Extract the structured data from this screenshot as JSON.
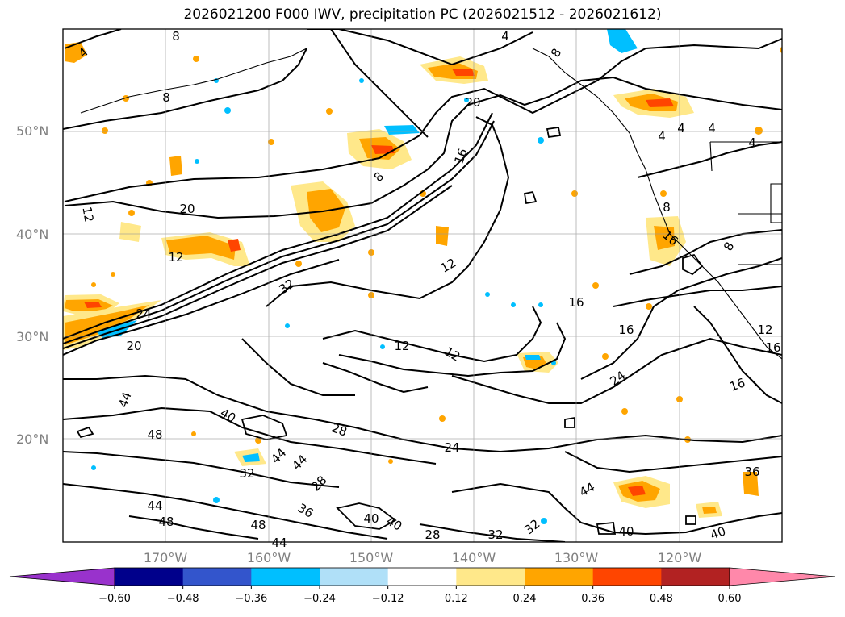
{
  "title": "2026021200 F000 IWV, precipitation PC (2026021512 - 2026021612)",
  "latitude_labels": [
    "50°N",
    "40°N",
    "30°N",
    "20°N"
  ],
  "longitude_labels": [
    "170°W",
    "160°W",
    "150°W",
    "140°W",
    "130°W",
    "120°W"
  ],
  "contour_labels": [
    "4",
    "8",
    "8",
    "4",
    "8",
    "8",
    "20",
    "16",
    "12",
    "12",
    "12",
    "16",
    "16",
    "32",
    "24",
    "20",
    "12",
    "12",
    "20",
    "8",
    "8",
    "4",
    "4",
    "4",
    "4",
    "16",
    "12",
    "16",
    "24",
    "16",
    "44",
    "48",
    "40",
    "28",
    "24",
    "28",
    "44",
    "44",
    "32",
    "36",
    "44",
    "48",
    "48",
    "44",
    "40",
    "40",
    "28",
    "32",
    "32",
    "44",
    "36",
    "40",
    "40"
  ],
  "colorbar": {
    "ticks": [
      "−0.60",
      "−0.48",
      "−0.36",
      "−0.24",
      "−0.12",
      "0.12",
      "0.24",
      "0.36",
      "0.48",
      "0.60"
    ],
    "colors": [
      "#9932cc",
      "#00008b",
      "#3355cc",
      "#00bfff",
      "#b0e0f8",
      "#ffffff",
      "#ffe88a",
      "#ffa500",
      "#ff4500",
      "#b22222",
      "#ff88aa"
    ]
  }
}
